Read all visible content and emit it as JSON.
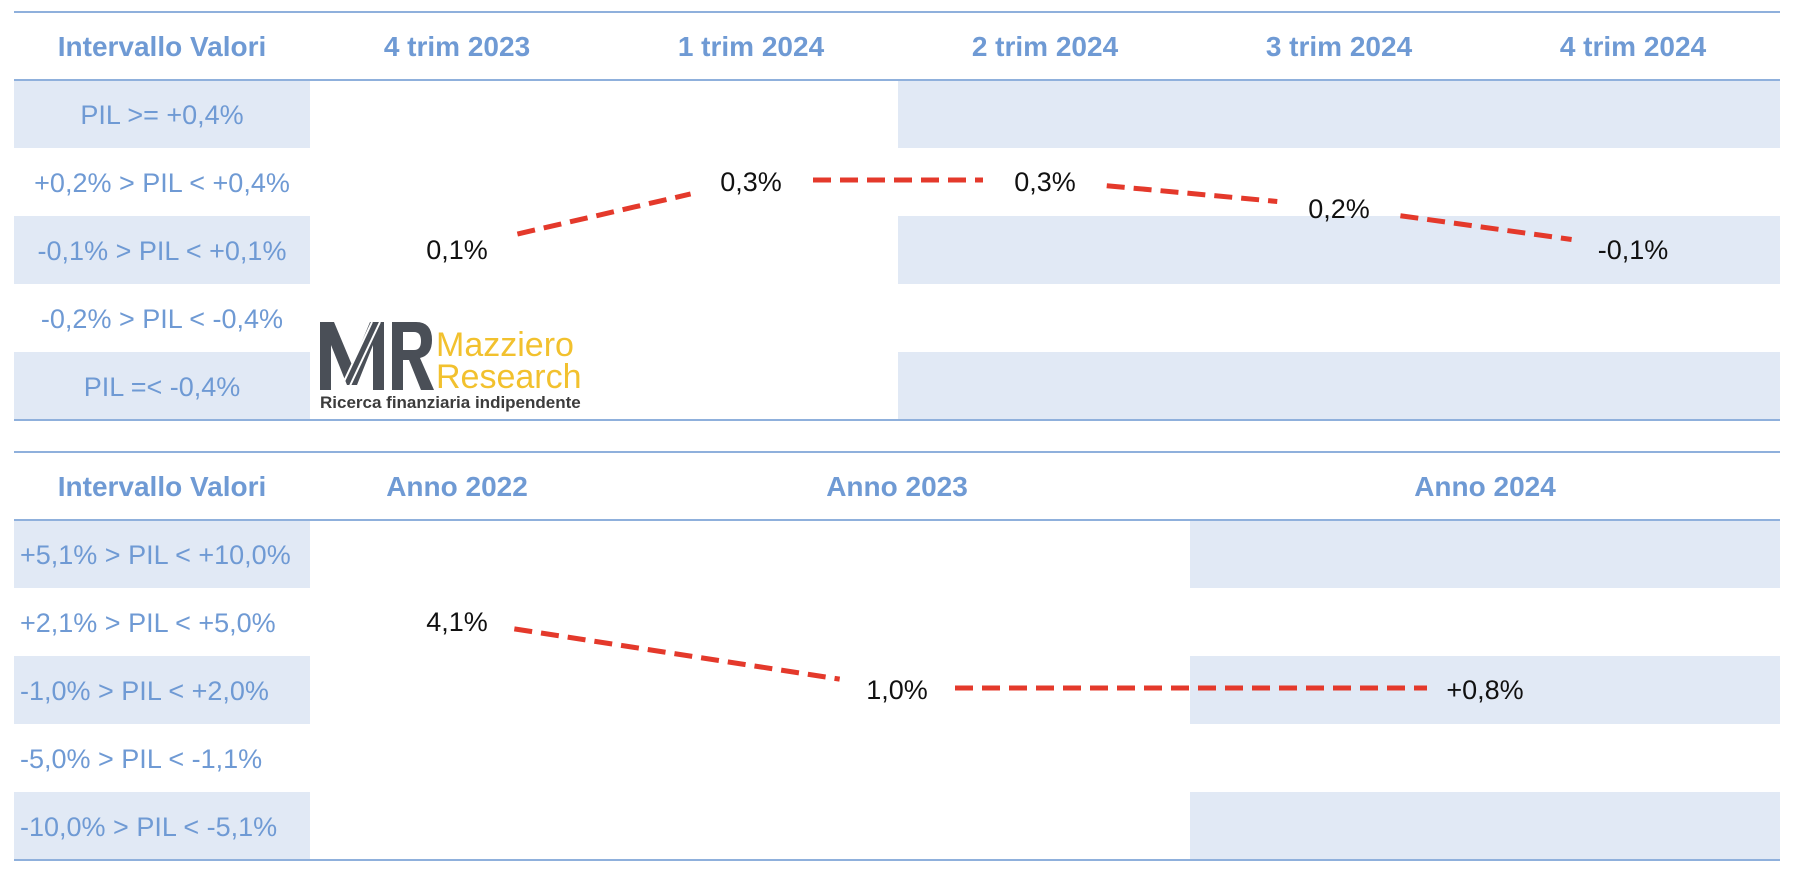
{
  "chart_data": [
    {
      "type": "table",
      "header_label": "Intervallo Valori",
      "categories": [
        "4 trim 2023",
        "1 trim 2024",
        "2 trim 2024",
        "3 trim 2024",
        "4 trim 2024"
      ],
      "rows": [
        "PIL >= +0,4%",
        "+0,2% > PIL < +0,4%",
        "-0,1% > PIL < +0,1%",
        "-0,2% > PIL < -0,4%",
        "PIL =< -0,4%"
      ],
      "points": [
        {
          "label": "0,1%",
          "row": 2
        },
        {
          "label": "0,3%",
          "row": 1
        },
        {
          "label": "0,3%",
          "row": 1
        },
        {
          "label": "0,2%",
          "row": 1.4
        },
        {
          "label": "-0,1%",
          "row": 2
        }
      ],
      "values": [
        0.1,
        0.3,
        0.3,
        0.2,
        -0.1
      ]
    },
    {
      "type": "table",
      "header_label": "Intervallo Valori",
      "categories": [
        "Anno 2022",
        "Anno 2023",
        "Anno 2024"
      ],
      "rows": [
        "+5,1% > PIL < +10,0%",
        "+2,1% > PIL < +5,0%",
        "-1,0% > PIL < +2,0%",
        "-5,0% > PIL < -1,1%",
        "-10,0% > PIL < -5,1%"
      ],
      "points": [
        {
          "label": "4,1%",
          "row": 1
        },
        {
          "label": "1,0%",
          "row": 2
        },
        {
          "label": "+0,8%",
          "row": 2
        }
      ],
      "values": [
        4.1,
        1.0,
        0.8
      ]
    }
  ],
  "logo": {
    "mark": "MR",
    "name_line1": "Mazziero",
    "name_line2": "Research",
    "tagline": "Ricerca finanziaria indipendente"
  },
  "colors": {
    "header_text": "#6f9ad4",
    "band": "#e1e9f5",
    "trend_line": "#e4392b",
    "logo_accent": "#f2c12e",
    "logo_dark": "#4a4f57"
  }
}
